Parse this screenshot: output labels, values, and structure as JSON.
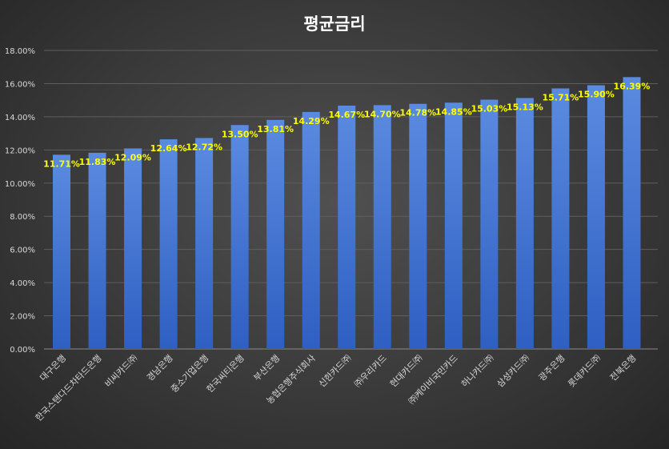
{
  "chart_data": {
    "type": "bar",
    "title": "평균금리",
    "categories": [
      "대구은행",
      "한국스탠다드차타드은행",
      "비씨카드㈜",
      "경남은행",
      "중소기업은행",
      "한국씨티은행",
      "부산은행",
      "농협은행주식회사",
      "신한카드㈜",
      "㈜우리카드",
      "현대카드㈜",
      "㈜케이비국민카드",
      "하나카드㈜",
      "삼성카드㈜",
      "광주은행",
      "롯데카드㈜",
      "전북은행"
    ],
    "values": [
      11.71,
      11.83,
      12.09,
      12.64,
      12.72,
      13.5,
      13.81,
      14.29,
      14.67,
      14.7,
      14.78,
      14.85,
      15.03,
      15.13,
      15.71,
      15.9,
      16.39
    ],
    "data_labels": [
      "11.71%",
      "11.83%",
      "12.09%",
      "12.64%",
      "12.72%",
      "13.50%",
      "13.81%",
      "14.29%",
      "14.67%",
      "14.70%",
      "14.78%",
      "14.85%",
      "15.03%",
      "15.13%",
      "15.71%",
      "15.90%",
      "16.39%"
    ],
    "y_ticks": [
      "0.00%",
      "2.00%",
      "4.00%",
      "6.00%",
      "8.00%",
      "10.00%",
      "12.00%",
      "14.00%",
      "16.00%",
      "18.00%"
    ],
    "ylim": [
      0,
      18
    ],
    "grid": true,
    "legend": "none",
    "colors": {
      "bar_top": "#5b8be0",
      "bar_bottom": "#2e5fc2",
      "data_label": "#ffff00",
      "gridline": "#5e5e5e"
    }
  }
}
